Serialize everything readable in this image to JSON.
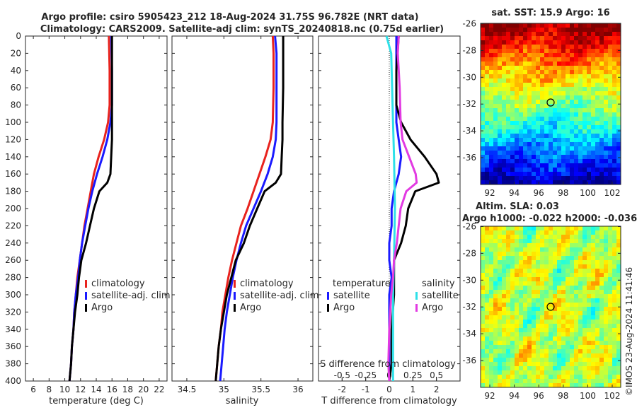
{
  "header": {
    "title_line1": "Argo profile: csiro 5905423_212 18-Aug-2024 31.75S 96.782E (NRT data)",
    "title_line2": "Climatology: CARS2009. Satellite-adj clim: synTS_20240818.nc (0.75d earlier)"
  },
  "depth_ticks": [
    "0",
    "20",
    "40",
    "60",
    "80",
    "100",
    "120",
    "140",
    "160",
    "180",
    "200",
    "220",
    "240",
    "260",
    "280",
    "300",
    "320",
    "340",
    "360",
    "380",
    "400"
  ],
  "legend_main": {
    "clim": "climatology",
    "sat": "satellite-adj. clim",
    "argo": "Argo"
  },
  "legend_diff": {
    "temp_header": "temperature",
    "sal_header": "salinity",
    "sat": "satellite",
    "argo": "Argo"
  },
  "map_sst": {
    "title": "sat. SST: 15.9 Argo: 16"
  },
  "map_sla": {
    "title1": "Altim. SLA: 0.03",
    "title2": "Argo h1000: -0.022 h2000: -0.036"
  },
  "map_lat_ticks": [
    "-26",
    "-28",
    "-30",
    "-32",
    "-34",
    "-36"
  ],
  "map_lon_ticks": [
    "92",
    "94",
    "96",
    "98",
    "100",
    "102"
  ],
  "copyright": "©IMOS 23-Aug-2024 11:41:46",
  "colors": {
    "clim": "#e8231e",
    "sat": "#1a1aff",
    "argo": "#000000",
    "sal_sat": "#2ee0e8",
    "sal_argo": "#e23ae2"
  },
  "chart_data": [
    {
      "type": "line",
      "title": "",
      "xlabel": "temperature (deg C)",
      "ylabel": "",
      "xlim": [
        5,
        23
      ],
      "ylim": [
        400,
        0
      ],
      "xticks": [
        "6",
        "8",
        "10",
        "12",
        "14",
        "16",
        "18",
        "20",
        "22"
      ],
      "series": [
        {
          "name": "climatology",
          "depth": [
            0,
            40,
            80,
            100,
            120,
            140,
            160,
            180,
            200,
            220,
            240,
            260,
            280,
            300,
            320,
            340,
            360,
            380,
            400
          ],
          "values": [
            15.6,
            15.7,
            15.7,
            15.5,
            15.0,
            14.3,
            13.7,
            13.3,
            12.9,
            12.5,
            12.2,
            11.9,
            11.6,
            11.4,
            11.2,
            11.1,
            10.9,
            10.8,
            10.6
          ]
        },
        {
          "name": "satellite-adj. clim",
          "depth": [
            0,
            40,
            80,
            100,
            120,
            140,
            160,
            180,
            200,
            220,
            240,
            260,
            280,
            300,
            320,
            340,
            360,
            380,
            400
          ],
          "values": [
            15.9,
            16.0,
            16.0,
            15.8,
            15.4,
            14.8,
            14.1,
            13.5,
            13.0,
            12.6,
            12.2,
            11.9,
            11.7,
            11.4,
            11.2,
            11.1,
            10.9,
            10.8,
            10.6
          ]
        },
        {
          "name": "Argo",
          "depth": [
            0,
            40,
            80,
            100,
            120,
            140,
            160,
            170,
            180,
            200,
            220,
            240,
            260,
            280,
            300,
            320,
            340,
            360,
            380,
            400
          ],
          "values": [
            16.0,
            16.0,
            16.0,
            16.0,
            16.0,
            15.9,
            15.8,
            15.4,
            14.4,
            13.7,
            13.2,
            12.7,
            12.1,
            11.8,
            11.6,
            11.3,
            11.1,
            10.9,
            10.8,
            10.6
          ]
        }
      ]
    },
    {
      "type": "line",
      "xlabel": "salinity",
      "xlim": [
        34.3,
        36.2
      ],
      "ylim": [
        400,
        0
      ],
      "xticks": [
        "34.5",
        "35",
        "35.5",
        "36"
      ],
      "series": [
        {
          "name": "climatology",
          "depth": [
            0,
            20,
            60,
            100,
            120,
            140,
            160,
            180,
            200,
            220,
            240,
            260,
            280,
            300,
            320,
            340,
            360,
            380,
            400
          ],
          "values": [
            35.66,
            35.67,
            35.67,
            35.66,
            35.63,
            35.56,
            35.48,
            35.4,
            35.32,
            35.23,
            35.17,
            35.11,
            35.06,
            35.02,
            34.98,
            34.96,
            34.93,
            34.91,
            34.89
          ]
        },
        {
          "name": "satellite-adj. clim",
          "depth": [
            0,
            20,
            60,
            100,
            120,
            140,
            160,
            180,
            200,
            220,
            240,
            260,
            280,
            300,
            320,
            340,
            360,
            380,
            400
          ],
          "values": [
            35.69,
            35.71,
            35.71,
            35.71,
            35.7,
            35.66,
            35.59,
            35.5,
            35.4,
            35.3,
            35.23,
            35.17,
            35.12,
            35.08,
            35.04,
            35.01,
            34.99,
            34.97,
            34.95
          ]
        },
        {
          "name": "Argo",
          "depth": [
            0,
            20,
            60,
            100,
            120,
            140,
            160,
            170,
            180,
            200,
            220,
            240,
            260,
            280,
            300,
            320,
            340,
            360,
            380,
            400
          ],
          "values": [
            35.8,
            35.8,
            35.8,
            35.79,
            35.79,
            35.78,
            35.77,
            35.7,
            35.55,
            35.45,
            35.35,
            35.27,
            35.16,
            35.1,
            35.04,
            35.0,
            34.96,
            34.93,
            34.91,
            34.89
          ]
        }
      ]
    },
    {
      "type": "line",
      "xlabel": "T difference from climatology",
      "top_label": "S difference from climatology",
      "xlim": [
        -3,
        3
      ],
      "ylim": [
        400,
        0
      ],
      "xticks": [
        "-2",
        "-1",
        "0",
        "1",
        "2"
      ],
      "sticks": [
        "-0.5",
        "-0.25",
        "0",
        "0.25",
        "0.5"
      ],
      "series": [
        {
          "name": "temperature satellite",
          "depth": [
            0,
            40,
            80,
            100,
            120,
            140,
            160,
            180,
            200,
            220,
            240,
            260,
            280,
            300,
            340,
            400
          ],
          "values": [
            0.3,
            0.3,
            0.3,
            0.3,
            0.4,
            0.5,
            0.4,
            0.2,
            0.1,
            0.1,
            0.0,
            0.0,
            0.1,
            0.0,
            0.0,
            0.0
          ]
        },
        {
          "name": "temperature Argo",
          "depth": [
            0,
            40,
            80,
            100,
            120,
            140,
            160,
            170,
            180,
            200,
            220,
            240,
            260,
            280,
            300,
            340,
            380,
            400
          ],
          "values": [
            0.4,
            0.3,
            0.3,
            0.5,
            0.9,
            1.5,
            2.0,
            2.1,
            1.1,
            0.8,
            0.7,
            0.5,
            0.2,
            0.2,
            0.2,
            0.1,
            0.1,
            0.0
          ]
        },
        {
          "name": "salinity satellite",
          "depth": [
            0,
            20,
            60,
            100,
            140,
            200,
            260,
            300,
            400
          ],
          "values": [
            -0.03,
            0.02,
            0.03,
            0.04,
            0.05,
            0.06,
            0.05,
            0.04,
            0.04
          ]
        },
        {
          "name": "salinity Argo",
          "depth": [
            0,
            20,
            60,
            100,
            120,
            140,
            160,
            170,
            180,
            200,
            220,
            240,
            260,
            280,
            300,
            340,
            380,
            400
          ],
          "values": [
            0.1,
            0.09,
            0.11,
            0.12,
            0.14,
            0.21,
            0.28,
            0.29,
            0.18,
            0.12,
            0.1,
            0.08,
            0.05,
            0.04,
            0.02,
            0.0,
            -0.01,
            0.0
          ]
        }
      ]
    }
  ]
}
